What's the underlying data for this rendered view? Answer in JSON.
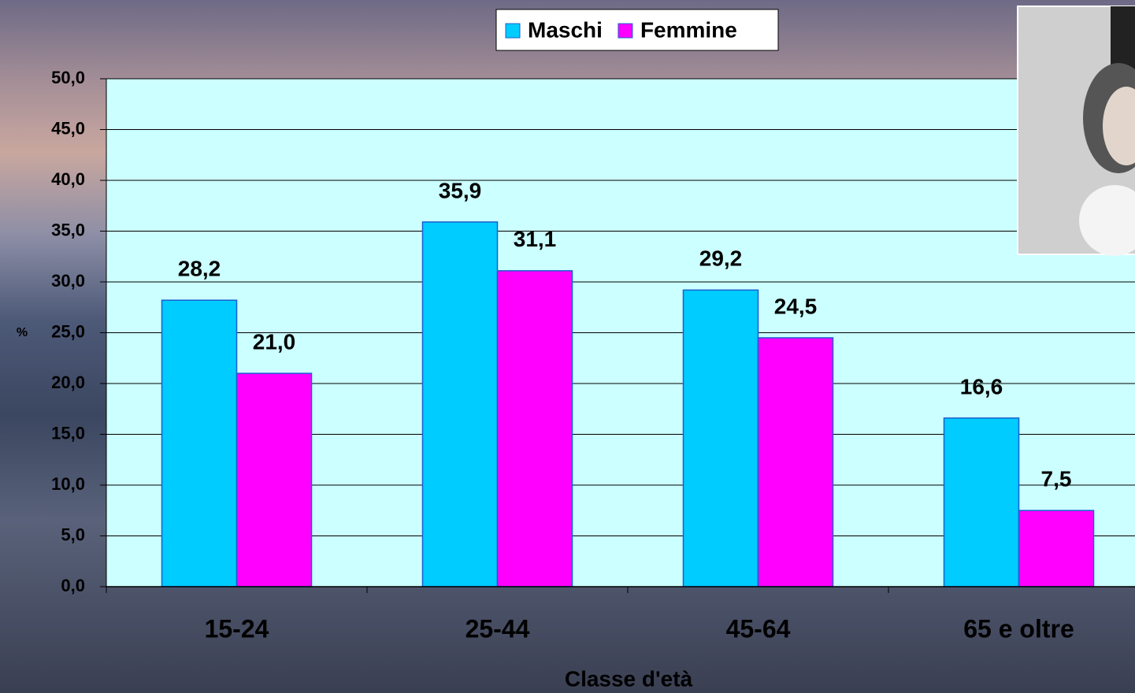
{
  "chart_data": {
    "type": "bar",
    "categories": [
      "15-24",
      "25-44",
      "45-64",
      "65 e oltre"
    ],
    "series": [
      {
        "name": "Maschi",
        "color": "#00ccff",
        "values": [
          28.2,
          35.9,
          29.2,
          16.6
        ],
        "value_labels": [
          "28,2",
          "35,9",
          "29,2",
          "16,6"
        ]
      },
      {
        "name": "Femmine",
        "color": "#ff00ff",
        "values": [
          21.0,
          31.1,
          24.5,
          7.5
        ],
        "value_labels": [
          "21,0",
          "31,1",
          "24,5",
          "7,5"
        ]
      }
    ],
    "ylabel": "%",
    "xlabel": "Classe d'età",
    "ylim": [
      0,
      50
    ],
    "yticks": [
      {
        "value": 0,
        "label": "0,0"
      },
      {
        "value": 5,
        "label": "5,0"
      },
      {
        "value": 10,
        "label": "10,0"
      },
      {
        "value": 15,
        "label": "15,0"
      },
      {
        "value": 20,
        "label": "20,0"
      },
      {
        "value": 25,
        "label": "25,0"
      },
      {
        "value": 30,
        "label": "30,0"
      },
      {
        "value": 35,
        "label": "35,0"
      },
      {
        "value": 40,
        "label": "40,0"
      },
      {
        "value": 45,
        "label": "45,0"
      },
      {
        "value": 50,
        "label": "50,0"
      }
    ],
    "grid": true,
    "legend": "top"
  }
}
